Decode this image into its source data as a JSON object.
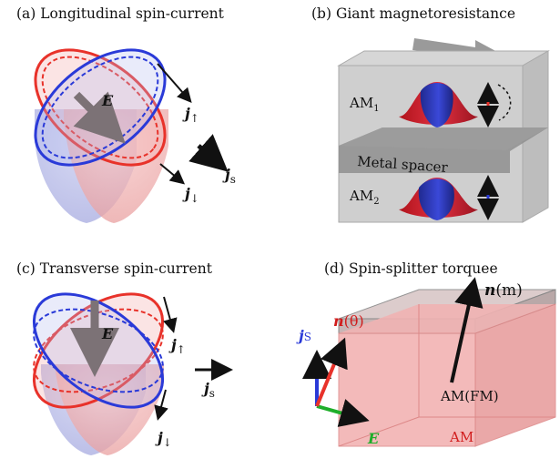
{
  "panels": {
    "a": {
      "title": "(a) Longitudinal spin-current",
      "field": "E",
      "j_up": "j",
      "j_up_sub": "↑",
      "j_down": "j",
      "j_down_sub": "↓",
      "j_s": "j",
      "j_s_sub": "s"
    },
    "b": {
      "title": "(b) Giant magnetoresistance",
      "am1": "AM",
      "am1_sub": "1",
      "am2": "AM",
      "am2_sub": "2",
      "spacer": "Metal spacer"
    },
    "c": {
      "title": "(c) Transverse spin-current",
      "field": "E",
      "j_up": "j",
      "j_up_sub": "↑",
      "j_down": "j",
      "j_down_sub": "↓",
      "j_s": "j",
      "j_s_sub": "s"
    },
    "d": {
      "title": "(d) Spin-splitter torquee",
      "n_m": "n",
      "n_m_arg": "(m)",
      "n_theta": "n",
      "n_theta_arg": "(θ)",
      "j_s": "j",
      "j_s_sub": "S",
      "field": "E",
      "top_layer": "AM(FM)",
      "bottom_layer": "AM"
    }
  },
  "colors": {
    "red": "#e8322a",
    "blue": "#2a3ad8",
    "green": "#1fae2a",
    "gray_arrow": "#7c7276",
    "box_gray": "#c9c9c9",
    "pink": "#f2a4a4"
  }
}
